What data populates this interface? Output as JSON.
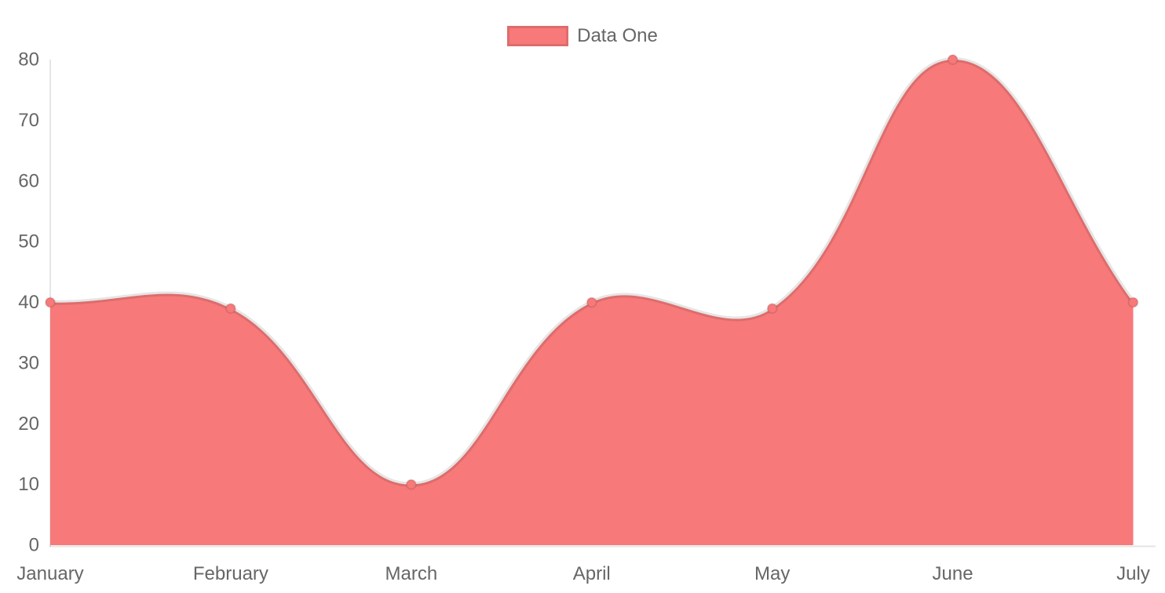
{
  "chart_data": {
    "type": "area",
    "title": "",
    "xlabel": "",
    "ylabel": "",
    "categories": [
      "January",
      "February",
      "March",
      "April",
      "May",
      "June",
      "July"
    ],
    "series": [
      {
        "name": "Data One",
        "values": [
          40,
          39,
          10,
          40,
          39,
          80,
          40
        ],
        "fill_color": "#f87979",
        "line_color": "rgba(0,0,0,0.1)",
        "point_color": "#f87979"
      }
    ],
    "ylim": [
      0,
      80
    ],
    "y_ticks": [
      0,
      10,
      20,
      30,
      40,
      50,
      60,
      70,
      80
    ],
    "grid": false,
    "legend_position": "top",
    "tension": 0.4,
    "axis_line_color": "rgba(0,0,0,0.1)",
    "tick_label_color": "#666666",
    "background_color": "#ffffff"
  }
}
